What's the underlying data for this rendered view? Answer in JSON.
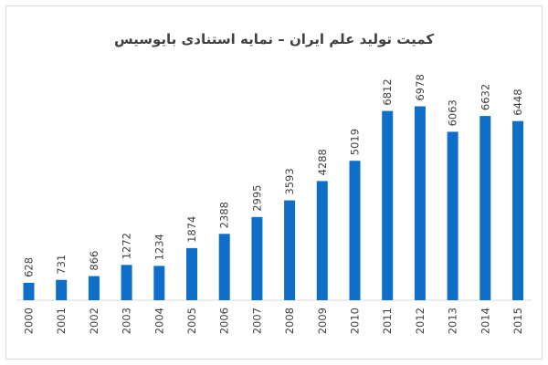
{
  "chart_data": {
    "type": "bar",
    "title": "کمیت تولید علم ایران – نمایه استنادی بایوسیس",
    "categories": [
      "2000",
      "2001",
      "2002",
      "2003",
      "2004",
      "2005",
      "2006",
      "2007",
      "2008",
      "2009",
      "2010",
      "2011",
      "2012",
      "2013",
      "2014",
      "2015"
    ],
    "values": [
      628,
      731,
      866,
      1272,
      1234,
      1874,
      2388,
      2995,
      3593,
      4288,
      5019,
      6812,
      6978,
      6063,
      6632,
      6448
    ],
    "xlabel": "",
    "ylabel": "",
    "ylim": [
      0,
      7000
    ],
    "grid": false,
    "bar_color": "#0e6ec8"
  }
}
